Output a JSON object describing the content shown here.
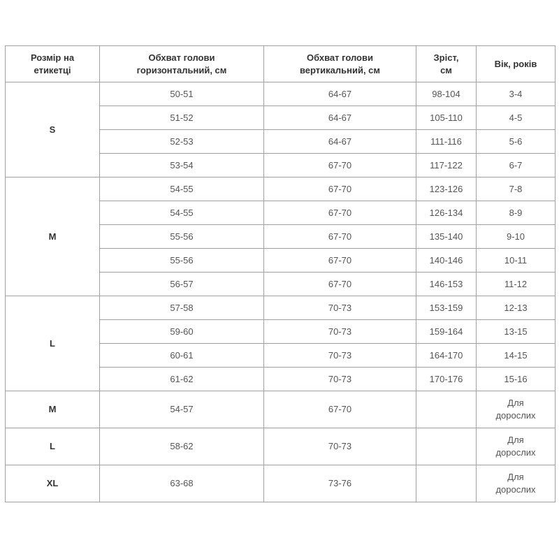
{
  "headers": [
    "Розмір на етикетці",
    "Обхват голови горизонтальний, см",
    "Обхват голови вертикальний, см",
    "Зріст, см",
    "Вік, років"
  ],
  "groups": [
    {
      "size": "S",
      "rows": [
        [
          "50-51",
          "64-67",
          "98-104",
          "3-4"
        ],
        [
          "51-52",
          "64-67",
          "105-110",
          "4-5"
        ],
        [
          "52-53",
          "64-67",
          "111-116",
          "5-6"
        ],
        [
          "53-54",
          "67-70",
          "117-122",
          "6-7"
        ]
      ]
    },
    {
      "size": "M",
      "rows": [
        [
          "54-55",
          "67-70",
          "123-126",
          "7-8"
        ],
        [
          "54-55",
          "67-70",
          "126-134",
          "8-9"
        ],
        [
          "55-56",
          "67-70",
          "135-140",
          "9-10"
        ],
        [
          "55-56",
          "67-70",
          "140-146",
          "10-11"
        ],
        [
          "56-57",
          "67-70",
          "146-153",
          "11-12"
        ]
      ]
    },
    {
      "size": "L",
      "rows": [
        [
          "57-58",
          "70-73",
          "153-159",
          "12-13"
        ],
        [
          "59-60",
          "70-73",
          "159-164",
          "13-15"
        ],
        [
          "60-61",
          "70-73",
          "164-170",
          "14-15"
        ],
        [
          "61-62",
          "70-73",
          "170-176",
          "15-16"
        ]
      ]
    },
    {
      "size": "M",
      "adult": true,
      "rows": [
        [
          "54-57",
          "67-70",
          "",
          "Для дорослих"
        ]
      ]
    },
    {
      "size": "L",
      "adult": true,
      "rows": [
        [
          "58-62",
          "70-73",
          "",
          "Для дорослих"
        ]
      ]
    },
    {
      "size": "XL",
      "adult": true,
      "rows": [
        [
          "63-68",
          "73-76",
          "",
          "Для дорослих"
        ]
      ]
    }
  ]
}
